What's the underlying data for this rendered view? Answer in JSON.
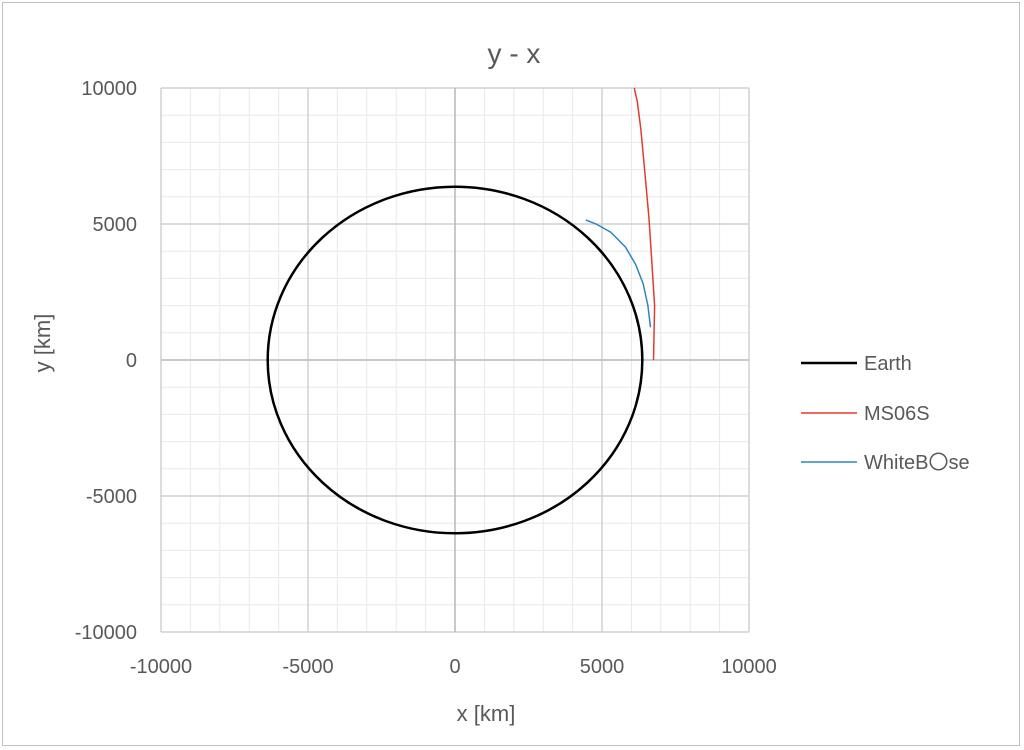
{
  "chart_data": {
    "type": "line",
    "title": "y - x",
    "xlabel": "x [km]",
    "ylabel": "y [km]",
    "xlim": [
      -10000,
      10000
    ],
    "ylim": [
      -10000,
      10000
    ],
    "x_ticks": [
      -10000,
      -5000,
      0,
      5000,
      10000
    ],
    "y_ticks": [
      10000,
      5000,
      0,
      -5000,
      -10000
    ],
    "grid": true,
    "legend_position": "right",
    "series": [
      {
        "name": "Earth",
        "color": "#000000",
        "kind": "circle",
        "radius": 6371
      },
      {
        "name": "MS06S",
        "color": "#e03c31",
        "x": [
          6750,
          6790,
          6700,
          6600,
          6450,
          6320,
          6200,
          6100
        ],
        "y": [
          0,
          2000,
          3500,
          5200,
          7000,
          8500,
          9500,
          10000
        ]
      },
      {
        "name": "WhiteB〇se",
        "color": "#2e86c1",
        "x": [
          6650,
          6560,
          6400,
          6150,
          5800,
          5300,
          4800,
          4450
        ],
        "y": [
          1200,
          2000,
          2800,
          3500,
          4150,
          4700,
          5000,
          5150
        ]
      }
    ]
  }
}
